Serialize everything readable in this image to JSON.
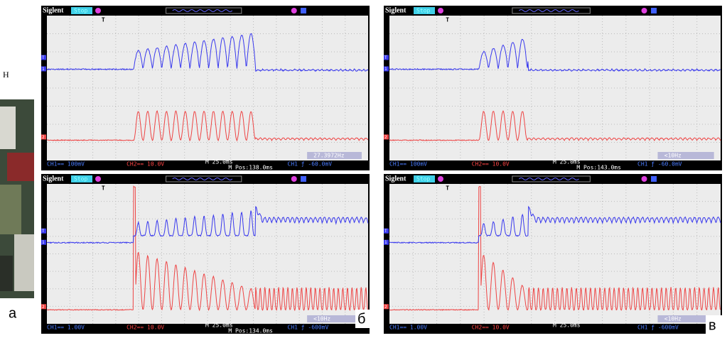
{
  "figure": {
    "left_label": "Н",
    "panel_labels": [
      "а",
      "б",
      "в"
    ],
    "brand": "Siglent",
    "state": "Stop",
    "markers": {
      "trigger": "T",
      "ch1": "1",
      "ch2": "2",
      "top": "T"
    },
    "panels": [
      {
        "ch1": "CH1== 100mV",
        "ch2": "CH2== 10.0V",
        "timebase": "M 25.0ms",
        "position": "M Pos:138.0ms",
        "trigger": "CH1 ƒ -60.0mV",
        "frequency": "27.3972Hz"
      },
      {
        "ch1": "CH1== 100mV",
        "ch2": "CH2== 10.0V",
        "timebase": "M 25.0ms",
        "position": "M Pos:143.0ms",
        "trigger": "CH1 ƒ -60.0mV",
        "frequency": "<10Hz"
      },
      {
        "ch1": "CH1== 1.00V",
        "ch2": "CH2== 10.0V",
        "timebase": "M 25.0ms",
        "position": "M Pos:134.0ms",
        "trigger": "CH1 ƒ -600mV",
        "frequency": "<10Hz"
      },
      {
        "ch1": "CH1== 1.00V",
        "ch2": "CH2== 10.0V",
        "timebase": "M 25.0ms",
        "trigger": "CH1 ƒ -600mV",
        "frequency": "<10Hz"
      }
    ]
  }
}
